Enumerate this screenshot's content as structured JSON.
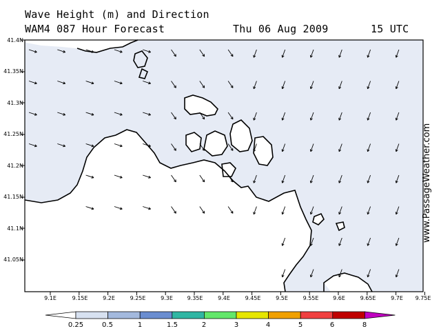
{
  "header": {
    "line1": "Wave Height (m) and Direction",
    "model_line": "WAM4 087 Hour Forecast",
    "date": "Thu 06 Aug 2009",
    "time": "15 UTC"
  },
  "site_label": "www.PassageWeather.com",
  "map": {
    "lat_labels": [
      "41.4N",
      "41.35N",
      "41.3N",
      "41.25N",
      "41.2N",
      "41.15N",
      "41.1N",
      "41.05N"
    ],
    "lon_labels": [
      "9.1E",
      "9.15E",
      "9.2E",
      "9.25E",
      "9.3E",
      "9.35E",
      "9.4E",
      "9.45E",
      "9.5E",
      "9.55E",
      "9.6E",
      "9.65E",
      "9.7E",
      "9.75E"
    ],
    "colors": {
      "sea_low": "#e6ebf5",
      "land": "#ffffff",
      "coast": "#000000"
    }
  },
  "colorbar": {
    "ticks": [
      "0.25",
      "0.5",
      "1",
      "1.5",
      "2",
      "3",
      "4",
      "5",
      "6",
      "8"
    ],
    "colors": [
      "#ffffff",
      "#d7e1f0",
      "#a3b9dd",
      "#6a8dd0",
      "#30b6a3",
      "#63e76a",
      "#e6e600",
      "#f0a000",
      "#f04040",
      "#c00000",
      "#c000c0"
    ]
  }
}
